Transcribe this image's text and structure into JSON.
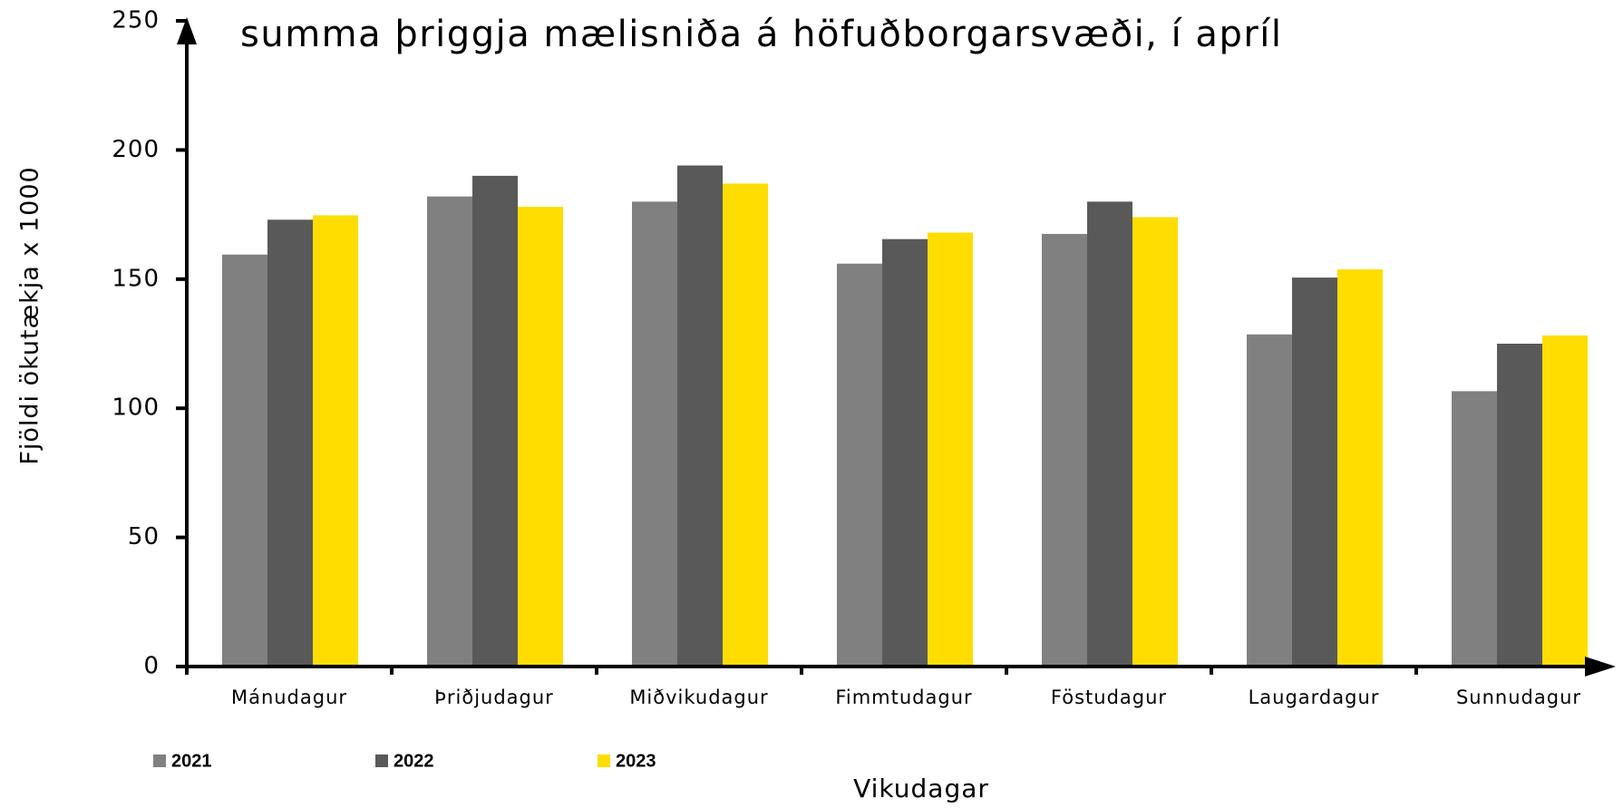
{
  "chart_data": {
    "type": "bar",
    "subtitle": "summa þriggja mælisniða á höfuðborgarsvæði, í apríl",
    "x_label": "Vikudagar",
    "y_label": "Fjöldi ökutækja x 1000",
    "categories": [
      "Mánudagur",
      "Þriðjudagur",
      "Miðvikudagur",
      "Fimmtudagur",
      "Föstudagur",
      "Laugardagur",
      "Sunnudagur"
    ],
    "series": [
      {
        "name": "2021",
        "color": "#808080",
        "values": [
          159.5,
          182,
          180,
          156,
          167.5,
          128.6,
          106.6
        ]
      },
      {
        "name": "2022",
        "color": "#595959",
        "values": [
          173,
          190,
          194,
          165.5,
          180,
          150.6,
          125
        ]
      },
      {
        "name": "2023",
        "color": "#ffdd00",
        "values": [
          174.7,
          178,
          187,
          168,
          174,
          153.8,
          128.2
        ]
      }
    ],
    "ylim": [
      0,
      250
    ],
    "yticks": [
      0,
      50,
      100,
      150,
      200,
      250
    ],
    "legend": "bottom-left"
  }
}
